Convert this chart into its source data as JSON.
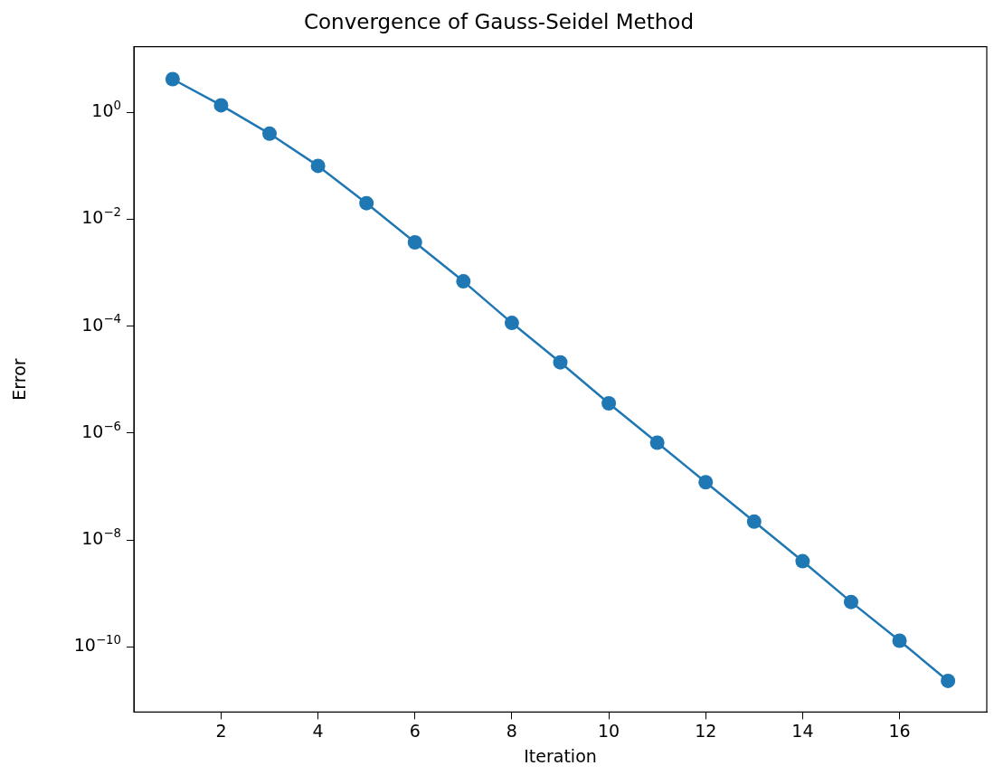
{
  "chart_data": {
    "type": "line",
    "title": "Convergence of Gauss-Seidel Method",
    "xlabel": "Iteration",
    "ylabel": "Error",
    "x": [
      1,
      2,
      3,
      4,
      5,
      6,
      7,
      8,
      9,
      10,
      11,
      12,
      13,
      14,
      15,
      16,
      17
    ],
    "series": [
      {
        "color": "#1f77b4",
        "values": [
          4.2,
          1.36,
          0.4,
          0.1,
          0.02,
          0.0037,
          0.00069,
          0.000115,
          2.1e-05,
          3.6e-06,
          6.6e-07,
          1.2e-07,
          2.2e-08,
          4e-09,
          6.9e-10,
          1.3e-10,
          2.3e-11
        ]
      }
    ],
    "log": "y",
    "marker": "circle",
    "line_style": "solid",
    "grid": false,
    "legend": false,
    "xlim": [
      0.2,
      17.8
    ],
    "xticks": [
      2,
      4,
      6,
      8,
      10,
      12,
      14,
      16
    ],
    "ylim": [
      6e-12,
      17
    ],
    "yticks": [
      {
        "value": 1,
        "label": "10$^{0}$"
      },
      {
        "value": 0.01,
        "label": "10$^{−2}$"
      },
      {
        "value": 0.0001,
        "label": "10$^{−4}$"
      },
      {
        "value": 1e-06,
        "label": "10$^{−6}$"
      },
      {
        "value": 1e-08,
        "label": "10$^{−8}$"
      },
      {
        "value": 1e-10,
        "label": "10$^{−10}$"
      }
    ]
  }
}
